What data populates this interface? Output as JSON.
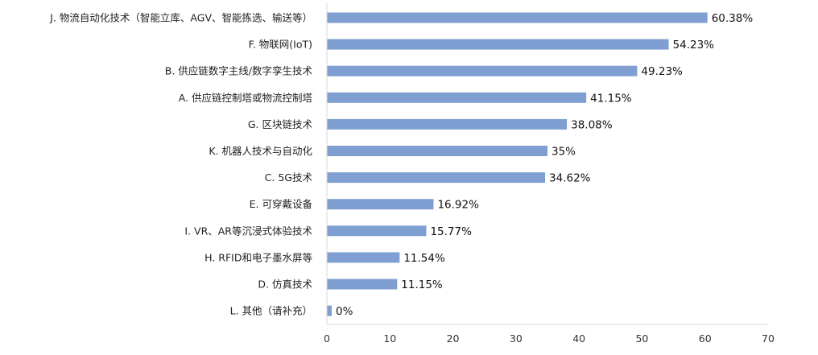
{
  "chart_data": {
    "type": "bar",
    "orientation": "horizontal",
    "categories": [
      "J. 物流自动化技术（智能立库、AGV、智能拣选、输送等）",
      "F. 物联网(IoT)",
      "B. 供应链数字主线/数字孪生技术",
      "A. 供应链控制塔或物流控制塔",
      "G. 区块链技术",
      "K. 机器人技术与自动化",
      "C. 5G技术",
      "E. 可穿戴设备",
      "I. VR、AR等沉浸式体验技术",
      "H. RFID和电子墨水屏等",
      "D. 仿真技术",
      "L. 其他（请补充）"
    ],
    "values": [
      60.38,
      54.23,
      49.23,
      41.15,
      38.08,
      35,
      34.62,
      16.92,
      15.77,
      11.54,
      11.15,
      0
    ],
    "value_labels": [
      "60.38%",
      "54.23%",
      "49.23%",
      "41.15%",
      "38.08%",
      "35%",
      "34.62%",
      "16.92%",
      "15.77%",
      "11.54%",
      "11.15%",
      "0%"
    ],
    "xlim": [
      0,
      70
    ],
    "xticks": [
      0,
      10,
      20,
      30,
      40,
      50,
      60,
      70
    ],
    "grid": false,
    "legend": "none",
    "bar_color": "#7F9FD3"
  }
}
